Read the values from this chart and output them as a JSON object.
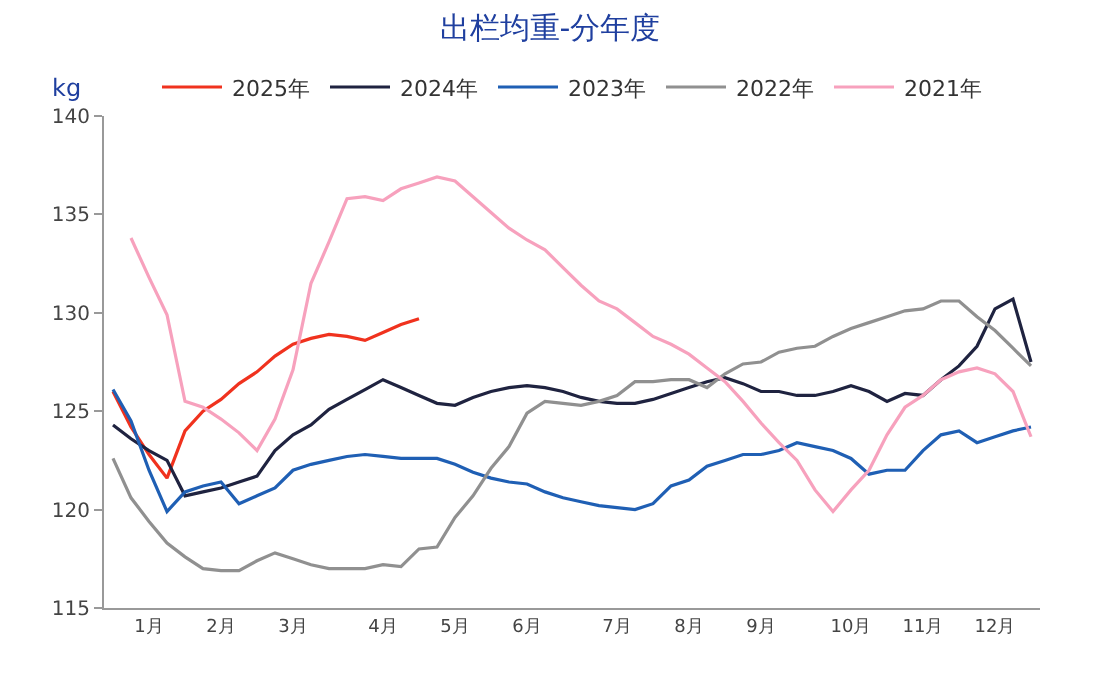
{
  "chart_data": {
    "type": "line",
    "title": "出栏均重-分年度",
    "ylabel": "kg",
    "categories": [
      null,
      null,
      "1月",
      null,
      null,
      null,
      "2月",
      null,
      null,
      null,
      "3月",
      null,
      null,
      null,
      null,
      "4月",
      null,
      null,
      null,
      "5月",
      null,
      null,
      null,
      "6月",
      null,
      null,
      null,
      null,
      "7月",
      null,
      null,
      null,
      "8月",
      null,
      null,
      null,
      "9月",
      null,
      null,
      null,
      null,
      "10月",
      null,
      null,
      null,
      "11月",
      null,
      null,
      null,
      "12月",
      null,
      null
    ],
    "series": [
      {
        "name": "2025年",
        "color": "#f0321e",
        "values": [
          126.0,
          124.2,
          122.8,
          121.6,
          124.0,
          125.0,
          125.6,
          126.4,
          127.0,
          127.8,
          128.4,
          128.7,
          128.9,
          128.8,
          128.6,
          129.0,
          129.4,
          129.7,
          null,
          null,
          null,
          null,
          null,
          null,
          null,
          null,
          null,
          null,
          null,
          null,
          null,
          null,
          null,
          null,
          null,
          null,
          null,
          null,
          null,
          null,
          null,
          null,
          null,
          null,
          null,
          null,
          null,
          null,
          null,
          null,
          null,
          null
        ]
      },
      {
        "name": "2024年",
        "color": "#1f2340",
        "values": [
          124.3,
          123.6,
          123.0,
          122.5,
          120.7,
          120.9,
          121.1,
          121.4,
          121.7,
          123.0,
          123.8,
          124.3,
          125.1,
          125.6,
          126.1,
          126.6,
          126.2,
          125.8,
          125.4,
          125.3,
          125.7,
          126.0,
          126.2,
          126.3,
          126.2,
          126.0,
          125.7,
          125.5,
          125.4,
          125.4,
          125.6,
          125.9,
          126.2,
          126.5,
          126.7,
          126.4,
          126.0,
          126.0,
          125.8,
          125.8,
          126.0,
          126.3,
          126.0,
          125.5,
          125.9,
          125.8,
          126.6,
          127.3,
          128.3,
          130.2,
          130.7,
          127.5
        ]
      },
      {
        "name": "2023年",
        "color": "#1f5fb4",
        "values": [
          126.1,
          124.5,
          122.0,
          119.9,
          120.9,
          121.2,
          121.4,
          120.3,
          120.7,
          121.1,
          122.0,
          122.3,
          122.5,
          122.7,
          122.8,
          122.7,
          122.6,
          122.6,
          122.6,
          122.3,
          121.9,
          121.6,
          121.4,
          121.3,
          120.9,
          120.6,
          120.4,
          120.2,
          120.1,
          120.0,
          120.3,
          121.2,
          121.5,
          122.2,
          122.5,
          122.8,
          122.8,
          123.0,
          123.4,
          123.2,
          123.0,
          122.6,
          121.8,
          122.0,
          122.0,
          123.0,
          123.8,
          124.0,
          123.4,
          123.7,
          124.0,
          124.2
        ]
      },
      {
        "name": "2022年",
        "color": "#909090",
        "values": [
          122.6,
          120.6,
          119.4,
          118.3,
          117.6,
          117.0,
          116.9,
          116.9,
          117.4,
          117.8,
          117.5,
          117.2,
          117.0,
          117.0,
          117.0,
          117.2,
          117.1,
          118.0,
          118.1,
          119.6,
          120.7,
          122.1,
          123.2,
          124.9,
          125.5,
          125.4,
          125.3,
          125.5,
          125.8,
          126.5,
          126.5,
          126.6,
          126.6,
          126.2,
          126.9,
          127.4,
          127.5,
          128.0,
          128.2,
          128.3,
          128.8,
          129.2,
          129.5,
          129.8,
          130.1,
          130.2,
          130.6,
          130.6,
          129.8,
          129.1,
          128.2,
          127.3
        ]
      },
      {
        "name": "2021年",
        "color": "#f7a1bd",
        "values": [
          null,
          133.8,
          131.8,
          129.9,
          125.5,
          125.2,
          124.6,
          123.9,
          123.0,
          124.6,
          127.1,
          131.5,
          133.6,
          135.8,
          135.9,
          135.7,
          136.3,
          136.6,
          136.9,
          136.7,
          135.9,
          135.1,
          134.3,
          133.7,
          133.2,
          132.3,
          131.4,
          130.6,
          130.2,
          129.5,
          128.8,
          128.4,
          127.9,
          127.2,
          126.5,
          125.5,
          124.4,
          123.4,
          122.5,
          121.0,
          119.9,
          121.0,
          122.0,
          123.8,
          125.2,
          125.8,
          126.6,
          127.0,
          127.2,
          126.9,
          126.0,
          123.7
        ]
      }
    ],
    "ylim": [
      115,
      140
    ],
    "yticks": [
      115,
      120,
      125,
      130,
      135,
      140
    ],
    "legend": "top",
    "marker": "none",
    "line_style": "solid"
  }
}
